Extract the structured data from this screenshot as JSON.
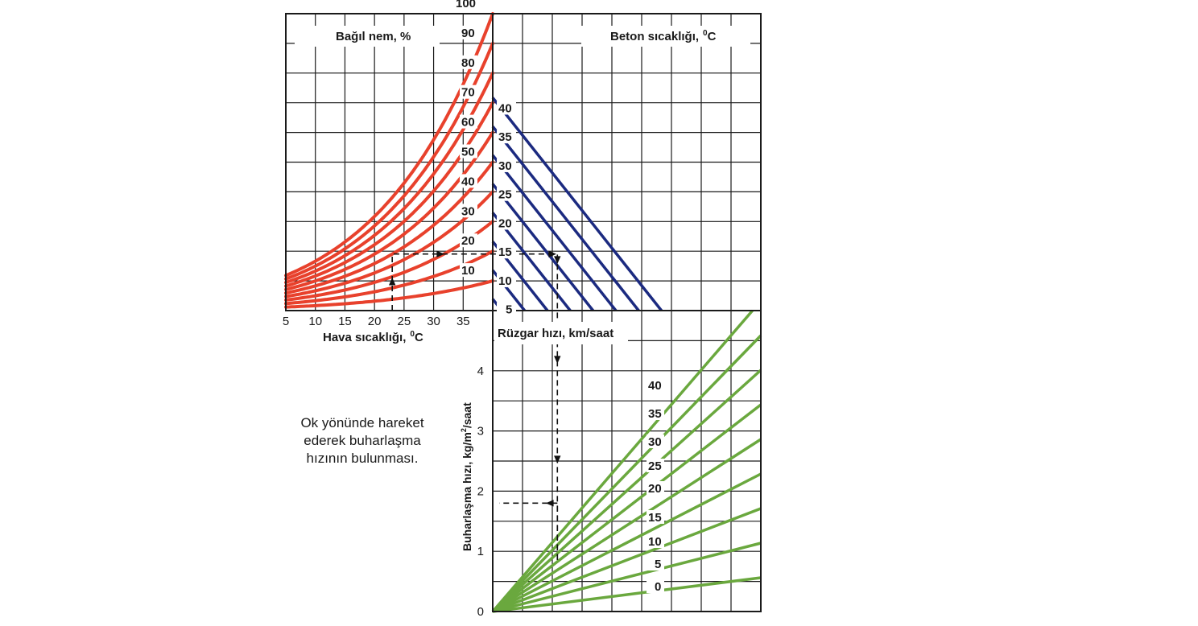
{
  "chart_data": [
    {
      "panel": "air-temperature-humidity",
      "type": "line",
      "title": "Bağıl nem, %",
      "xlabel": "Hava sıcaklığı,",
      "xlabel_unit": "C",
      "xlabel_unit_sup": "0",
      "x_ticks": [
        "5",
        "10",
        "15",
        "20",
        "25",
        "30",
        "35"
      ],
      "xlim": [
        5,
        40
      ],
      "ylim": [
        0,
        50
      ],
      "color": "#e8412c",
      "series": [
        {
          "name": "100",
          "humidity": 100
        },
        {
          "name": "90",
          "humidity": 90
        },
        {
          "name": "80",
          "humidity": 80
        },
        {
          "name": "70",
          "humidity": 70
        },
        {
          "name": "60",
          "humidity": 60
        },
        {
          "name": "50",
          "humidity": 50
        },
        {
          "name": "40",
          "humidity": 40
        },
        {
          "name": "30",
          "humidity": 30
        },
        {
          "name": "20",
          "humidity": 20
        },
        {
          "name": "10",
          "humidity": 10
        }
      ]
    },
    {
      "panel": "concrete-temperature",
      "type": "line",
      "title": "Beton sıcaklığı,",
      "title_unit": "C",
      "title_unit_sup": "0",
      "color": "#1b2a80",
      "series": [
        {
          "name": "40",
          "concrete_temp": 40
        },
        {
          "name": "35",
          "concrete_temp": 35
        },
        {
          "name": "30",
          "concrete_temp": 30
        },
        {
          "name": "25",
          "concrete_temp": 25
        },
        {
          "name": "20",
          "concrete_temp": 20
        },
        {
          "name": "15",
          "concrete_temp": 15
        },
        {
          "name": "10",
          "concrete_temp": 10
        },
        {
          "name": "5",
          "concrete_temp": 5
        }
      ]
    },
    {
      "panel": "wind-speed-evaporation",
      "type": "line",
      "title": "Rüzgar hızı, km/saat",
      "ylabel": "Buharlaşma hızı, kg/m",
      "ylabel_sup": "2",
      "ylabel_tail": "/saat",
      "y_ticks": [
        "0",
        "1",
        "2",
        "3",
        "4"
      ],
      "ylim": [
        0,
        5
      ],
      "color": "#6aa83e",
      "series": [
        {
          "name": "40",
          "wind_speed": 40
        },
        {
          "name": "35",
          "wind_speed": 35
        },
        {
          "name": "30",
          "wind_speed": 30
        },
        {
          "name": "25",
          "wind_speed": 25
        },
        {
          "name": "20",
          "wind_speed": 20
        },
        {
          "name": "15",
          "wind_speed": 15
        },
        {
          "name": "10",
          "wind_speed": 10
        },
        {
          "name": "5",
          "wind_speed": 5
        },
        {
          "name": "0",
          "wind_speed": 0
        }
      ]
    }
  ],
  "example": {
    "air_temperature": 23,
    "relative_humidity": 50,
    "concrete_temperature": 27,
    "wind_speed": 26,
    "evaporation_rate": 1.8
  },
  "note": {
    "line1": "Ok yönünde hareket",
    "line2": "ederek buharlaşma",
    "line3": "hızının bulunması."
  },
  "colors": {
    "humidity": "#e8412c",
    "concrete": "#1b2a80",
    "wind": "#6aa83e",
    "grid": "#1a1a1a"
  }
}
